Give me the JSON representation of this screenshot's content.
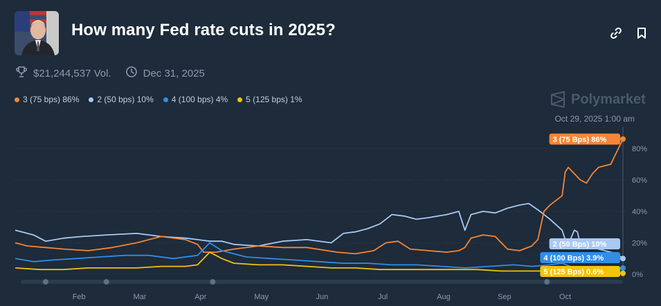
{
  "market": {
    "title": "How many Fed rate cuts in 2025?",
    "volume": "$21,244,537 Vol.",
    "end_date": "Dec 31, 2025",
    "brand": "Polymarket"
  },
  "icons": {
    "avatar": "portrait-avatar",
    "link": "link-icon",
    "bookmark": "bookmark-icon",
    "trophy": "trophy-icon",
    "clock": "clock-icon"
  },
  "legend": [
    {
      "label": "3 (75 bps) 86%",
      "color": "#f58637"
    },
    {
      "label": "2 (50 bps) 10%",
      "color": "#a9c9f5"
    },
    {
      "label": "4 (100 bps) 4%",
      "color": "#2f8ee8"
    },
    {
      "label": "5 (125 bps) 1%",
      "color": "#f2c40c"
    }
  ],
  "chart_data": {
    "type": "line",
    "timestamp": "Oct 29, 2025 1:00 am",
    "x_labels": [
      "Feb",
      "Mar",
      "Apr",
      "May",
      "Jun",
      "Jul",
      "Aug",
      "Sep",
      "Oct"
    ],
    "x_range": [
      0,
      10
    ],
    "ylim": [
      0,
      90
    ],
    "yticks": [
      0,
      20,
      40,
      60,
      80
    ],
    "ytick_labels": [
      "0%",
      "20%",
      "40%",
      "60%",
      "80%"
    ],
    "series": [
      {
        "name": "2 (50 bps)",
        "color": "#a9c9f5",
        "end_label": "2 (50 Bps) 10%",
        "points": [
          [
            0,
            28
          ],
          [
            0.3,
            25
          ],
          [
            0.5,
            21
          ],
          [
            0.8,
            23
          ],
          [
            1.1,
            24
          ],
          [
            1.5,
            25
          ],
          [
            2,
            26
          ],
          [
            2.4,
            24
          ],
          [
            2.8,
            23
          ],
          [
            3,
            22
          ],
          [
            3.2,
            21
          ],
          [
            3.4,
            21
          ],
          [
            3.6,
            19
          ],
          [
            4,
            18
          ],
          [
            4.4,
            21
          ],
          [
            4.8,
            22
          ],
          [
            5.2,
            20
          ],
          [
            5.4,
            26
          ],
          [
            5.6,
            27
          ],
          [
            5.8,
            29
          ],
          [
            6.0,
            32
          ],
          [
            6.1,
            35
          ],
          [
            6.2,
            38
          ],
          [
            6.4,
            37
          ],
          [
            6.6,
            35
          ],
          [
            6.8,
            36
          ],
          [
            7.1,
            38
          ],
          [
            7.3,
            40
          ],
          [
            7.4,
            28
          ],
          [
            7.5,
            38
          ],
          [
            7.7,
            40
          ],
          [
            7.9,
            39
          ],
          [
            8.1,
            42
          ],
          [
            8.3,
            44
          ],
          [
            8.45,
            45
          ],
          [
            8.6,
            41
          ],
          [
            8.8,
            35
          ],
          [
            9.0,
            28
          ],
          [
            9.05,
            22
          ],
          [
            9.1,
            19
          ],
          [
            9.2,
            28
          ],
          [
            9.25,
            27
          ],
          [
            9.3,
            19
          ],
          [
            9.5,
            17
          ],
          [
            9.7,
            15
          ],
          [
            9.9,
            13
          ],
          [
            10,
            10
          ]
        ]
      },
      {
        "name": "3 (75 bps)",
        "color": "#f58637",
        "end_label": "3 (75 Bps) 86%",
        "points": [
          [
            0,
            20
          ],
          [
            0.2,
            18
          ],
          [
            0.5,
            17
          ],
          [
            0.8,
            16
          ],
          [
            1.2,
            15
          ],
          [
            1.6,
            17
          ],
          [
            2.0,
            20
          ],
          [
            2.4,
            24
          ],
          [
            2.8,
            22
          ],
          [
            3.0,
            19
          ],
          [
            3.1,
            14
          ],
          [
            3.3,
            14
          ],
          [
            3.6,
            16
          ],
          [
            4.0,
            18
          ],
          [
            4.4,
            17
          ],
          [
            4.8,
            17
          ],
          [
            5.3,
            14
          ],
          [
            5.6,
            13
          ],
          [
            5.9,
            15
          ],
          [
            6.1,
            20
          ],
          [
            6.3,
            21
          ],
          [
            6.5,
            16
          ],
          [
            6.8,
            15
          ],
          [
            7.1,
            14
          ],
          [
            7.3,
            15
          ],
          [
            7.4,
            17
          ],
          [
            7.5,
            23
          ],
          [
            7.7,
            25
          ],
          [
            7.9,
            24
          ],
          [
            8.1,
            16
          ],
          [
            8.3,
            15
          ],
          [
            8.5,
            18
          ],
          [
            8.6,
            22
          ],
          [
            8.7,
            40
          ],
          [
            8.8,
            44
          ],
          [
            9.0,
            50
          ],
          [
            9.05,
            65
          ],
          [
            9.1,
            68
          ],
          [
            9.3,
            60
          ],
          [
            9.4,
            58
          ],
          [
            9.5,
            64
          ],
          [
            9.6,
            68
          ],
          [
            9.8,
            70
          ],
          [
            9.9,
            78
          ],
          [
            10,
            86
          ]
        ]
      },
      {
        "name": "4 (100 bps)",
        "color": "#2f8ee8",
        "end_label": "4 (100 Bps) 3.9%",
        "points": [
          [
            0,
            10
          ],
          [
            0.3,
            8
          ],
          [
            0.6,
            9
          ],
          [
            1.0,
            10
          ],
          [
            1.4,
            11
          ],
          [
            1.8,
            12
          ],
          [
            2.2,
            12
          ],
          [
            2.6,
            10
          ],
          [
            3.0,
            12
          ],
          [
            3.2,
            20
          ],
          [
            3.4,
            15
          ],
          [
            3.8,
            11
          ],
          [
            4.2,
            10
          ],
          [
            4.6,
            9
          ],
          [
            5.0,
            8
          ],
          [
            5.4,
            7
          ],
          [
            5.8,
            7
          ],
          [
            6.2,
            6
          ],
          [
            6.6,
            6
          ],
          [
            7.0,
            5
          ],
          [
            7.4,
            4
          ],
          [
            7.8,
            5
          ],
          [
            8.2,
            6
          ],
          [
            8.5,
            5
          ],
          [
            8.8,
            6
          ],
          [
            9.0,
            7
          ],
          [
            9.2,
            4
          ],
          [
            9.5,
            4
          ],
          [
            9.8,
            4
          ],
          [
            10,
            3.9
          ]
        ]
      },
      {
        "name": "5 (125 bps)",
        "color": "#f2c40c",
        "end_label": "5 (125 Bps) 0.6%",
        "points": [
          [
            0,
            4
          ],
          [
            0.4,
            3
          ],
          [
            0.8,
            3
          ],
          [
            1.2,
            4
          ],
          [
            1.6,
            4
          ],
          [
            2.0,
            4
          ],
          [
            2.4,
            5
          ],
          [
            2.8,
            5
          ],
          [
            3.0,
            6
          ],
          [
            3.2,
            14
          ],
          [
            3.4,
            10
          ],
          [
            3.6,
            7
          ],
          [
            4.0,
            6
          ],
          [
            4.4,
            6
          ],
          [
            4.8,
            5
          ],
          [
            5.2,
            4
          ],
          [
            5.6,
            4
          ],
          [
            6.0,
            3
          ],
          [
            6.4,
            3
          ],
          [
            6.8,
            3
          ],
          [
            7.2,
            3
          ],
          [
            7.6,
            3
          ],
          [
            8.0,
            2
          ],
          [
            8.4,
            2
          ],
          [
            8.8,
            2
          ],
          [
            9.2,
            1
          ],
          [
            9.6,
            1
          ],
          [
            10,
            0.6
          ]
        ]
      }
    ]
  }
}
